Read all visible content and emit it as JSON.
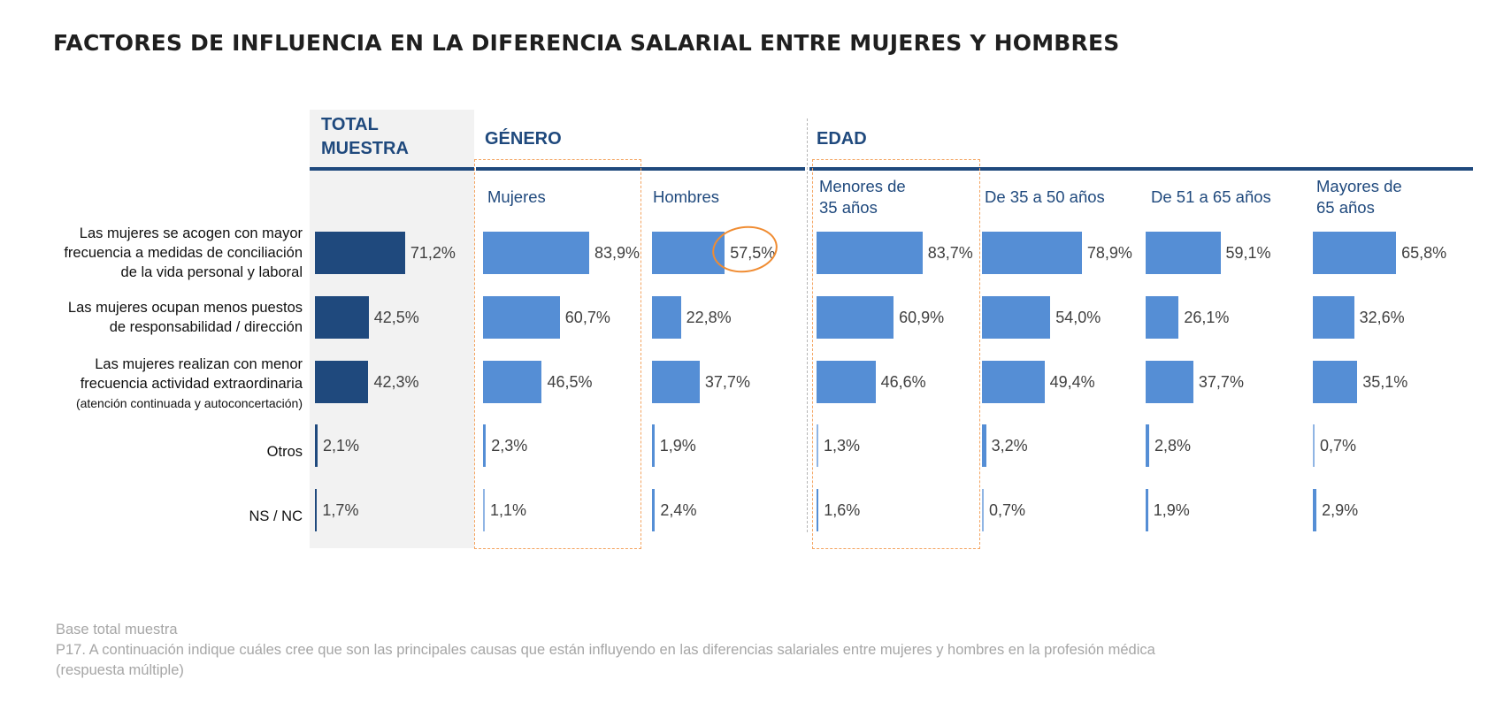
{
  "title": "FACTORES DE INFLUENCIA EN LA DIFERENCIA SALARIAL ENTRE MUJERES Y HOMBRES",
  "group_headers": {
    "total": "TOTAL\nMUESTRA",
    "genero": "GÉNERO",
    "edad": "EDAD"
  },
  "colors": {
    "total_bar": "#1f497d",
    "segment_bar": "#558ed5",
    "header_text": "#1f497d",
    "highlight": "#f08c32"
  },
  "footer": {
    "line1": "Base total muestra",
    "line2": "P17. A continuación indique cuáles cree que son las principales causas que están influyendo en las diferencias salariales entre mujeres y hombres en la profesión médica",
    "line3": "(respuesta múltiple)"
  },
  "chart_data": {
    "type": "bar",
    "orientation": "horizontal",
    "xlim": [
      0,
      100
    ],
    "categories": [
      "Las mujeres se acogen con mayor frecuencia a medidas de conciliación de la vida personal y laboral",
      "Las mujeres ocupan menos puestos de responsabilidad / dirección",
      "Las mujeres realizan con menor frecuencia actividad extraordinaria (atención continuada y autoconcertación)",
      "Otros",
      "NS / NC"
    ],
    "category_lines": [
      [
        "Las mujeres se acogen con mayor",
        "frecuencia a medidas de conciliación",
        "de la vida personal y laboral"
      ],
      [
        "Las mujeres ocupan menos puestos",
        "de responsabilidad / dirección"
      ],
      [
        "Las mujeres realizan con menor",
        "frecuencia actividad extraordinaria"
      ],
      [
        "Otros"
      ],
      [
        "NS / NC"
      ]
    ],
    "category_sublabel": "(atención continuada y autoconcertación)",
    "series": [
      {
        "name": "TOTAL\nMUESTRA",
        "group": "total",
        "values": [
          71.2,
          42.5,
          42.3,
          2.1,
          1.7
        ],
        "labels": [
          "71,2%",
          "42,5%",
          "42,3%",
          "2,1%",
          "1,7%"
        ]
      },
      {
        "name": "Mujeres",
        "group": "genero",
        "values": [
          83.9,
          60.7,
          46.5,
          2.3,
          1.1
        ],
        "labels": [
          "83,9%",
          "60,7%",
          "46,5%",
          "2,3%",
          "1,1%"
        ]
      },
      {
        "name": "Hombres",
        "group": "genero",
        "values": [
          57.5,
          22.8,
          37.7,
          1.9,
          2.4
        ],
        "labels": [
          "57,5%",
          "22,8%",
          "37,7%",
          "1,9%",
          "2,4%"
        ]
      },
      {
        "name": "Menores de\n35 años",
        "group": "edad",
        "values": [
          83.7,
          60.9,
          46.6,
          1.3,
          1.6
        ],
        "labels": [
          "83,7%",
          "60,9%",
          "46,6%",
          "1,3%",
          "1,6%"
        ]
      },
      {
        "name": "De 35 a 50 años",
        "group": "edad",
        "values": [
          78.9,
          54.0,
          49.4,
          3.2,
          0.7
        ],
        "labels": [
          "78,9%",
          "54,0%",
          "49,4%",
          "3,2%",
          "0,7%"
        ]
      },
      {
        "name": "De 51 a 65 años",
        "group": "edad",
        "values": [
          59.1,
          26.1,
          37.7,
          2.8,
          1.9
        ],
        "labels": [
          "59,1%",
          "26,1%",
          "37,7%",
          "2,8%",
          "1,9%"
        ]
      },
      {
        "name": "Mayores de\n 65 años",
        "group": "edad",
        "values": [
          65.8,
          32.6,
          35.1,
          0.7,
          2.9
        ],
        "labels": [
          "65,8%",
          "32,6%",
          "35,1%",
          "0,7%",
          "2,9%"
        ]
      }
    ],
    "highlighted_columns": [
      "Mujeres",
      "Menores de\n35 años"
    ],
    "circled_value": {
      "series": "Hombres",
      "category_index": 0
    }
  }
}
